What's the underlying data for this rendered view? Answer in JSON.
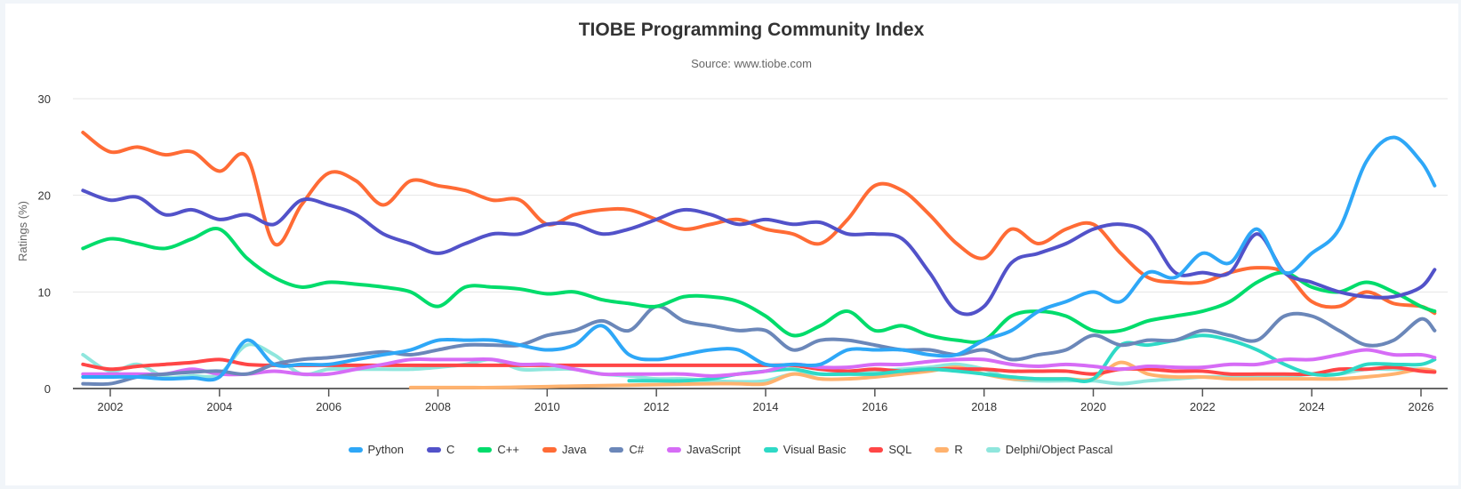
{
  "chart_data": {
    "type": "line",
    "title": "TIOBE Programming Community Index",
    "subtitle": "Source: www.tiobe.com",
    "xlabel": "",
    "ylabel": "Ratings (%)",
    "ylim": [
      0,
      30
    ],
    "yticks": [
      "0",
      "10",
      "20",
      "30"
    ],
    "xticks": [
      "2002",
      "2004",
      "2006",
      "2008",
      "2010",
      "2012",
      "2014",
      "2016",
      "2018",
      "2020",
      "2022",
      "2024",
      "2026"
    ],
    "grid": true,
    "legend_position": "bottom",
    "x": [
      "2001-07",
      "2002-01",
      "2002-07",
      "2003-01",
      "2003-07",
      "2004-01",
      "2004-07",
      "2005-01",
      "2005-07",
      "2006-01",
      "2006-07",
      "2007-01",
      "2007-07",
      "2008-01",
      "2008-07",
      "2009-01",
      "2009-07",
      "2010-01",
      "2010-07",
      "2011-01",
      "2011-07",
      "2012-01",
      "2012-07",
      "2013-01",
      "2013-07",
      "2014-01",
      "2014-07",
      "2015-01",
      "2015-07",
      "2016-01",
      "2016-07",
      "2017-01",
      "2017-07",
      "2018-01",
      "2018-07",
      "2019-01",
      "2019-07",
      "2020-01",
      "2020-07",
      "2021-01",
      "2021-07",
      "2022-01",
      "2022-07",
      "2023-01",
      "2023-07",
      "2024-01",
      "2024-07",
      "2025-01",
      "2025-07",
      "2026-01",
      "2026-04"
    ],
    "series": [
      {
        "name": "Python",
        "color": "#2ea7f7",
        "values": [
          1.2,
          1.2,
          1.2,
          1.0,
          1.1,
          1.2,
          5.0,
          2.5,
          2.5,
          2.5,
          3.0,
          3.5,
          4.0,
          5.0,
          5.0,
          5.0,
          4.5,
          4.0,
          4.5,
          6.5,
          3.5,
          3.0,
          3.5,
          4.0,
          4.0,
          2.5,
          2.5,
          2.5,
          4.0,
          4.0,
          4.0,
          3.5,
          3.5,
          5.0,
          6.0,
          8.0,
          9.0,
          10.0,
          9.0,
          12.0,
          11.5,
          14.0,
          13.0,
          16.5,
          12.0,
          14.0,
          16.5,
          23.5,
          26.0,
          23.5,
          21.0
        ]
      },
      {
        "name": "C",
        "color": "#5252c9",
        "values": [
          20.5,
          19.5,
          19.8,
          18.0,
          18.5,
          17.5,
          18.0,
          17.0,
          19.5,
          19.0,
          18.0,
          16.0,
          15.0,
          14.0,
          15.0,
          16.0,
          16.0,
          17.0,
          17.0,
          16.0,
          16.5,
          17.5,
          18.5,
          18.0,
          17.0,
          17.5,
          17.0,
          17.2,
          16.0,
          16.0,
          15.5,
          12.0,
          8.0,
          8.5,
          13.0,
          14.0,
          15.0,
          16.5,
          17.0,
          16.0,
          12.0,
          12.0,
          12.0,
          16.0,
          12.0,
          11.0,
          10.0,
          9.5,
          9.5,
          10.5,
          12.3
        ]
      },
      {
        "name": "C++",
        "color": "#00dc6b",
        "values": [
          14.5,
          15.5,
          15.0,
          14.5,
          15.5,
          16.5,
          13.5,
          11.5,
          10.5,
          11.0,
          10.8,
          10.5,
          10.0,
          8.5,
          10.5,
          10.5,
          10.3,
          9.8,
          10.0,
          9.2,
          8.8,
          8.5,
          9.5,
          9.5,
          9.0,
          7.5,
          5.5,
          6.5,
          8.0,
          6.0,
          6.5,
          5.5,
          5.0,
          5.0,
          7.5,
          8.0,
          7.5,
          6.0,
          6.0,
          7.0,
          7.5,
          8.0,
          9.0,
          11.0,
          12.0,
          10.5,
          10.0,
          11.0,
          10.0,
          8.5,
          8.0
        ]
      },
      {
        "name": "Java",
        "color": "#ff6b35",
        "values": [
          26.5,
          24.5,
          25.0,
          24.2,
          24.5,
          22.5,
          24.0,
          15.0,
          19.0,
          22.3,
          21.5,
          19.0,
          21.5,
          21.0,
          20.5,
          19.5,
          19.5,
          17.0,
          18.0,
          18.5,
          18.5,
          17.5,
          16.5,
          17.0,
          17.5,
          16.5,
          16.0,
          15.0,
          17.5,
          21.0,
          20.5,
          18.0,
          15.0,
          13.5,
          16.5,
          15.0,
          16.5,
          17.0,
          14.0,
          11.5,
          11.0,
          11.0,
          12.0,
          12.5,
          12.0,
          9.0,
          8.5,
          10.0,
          8.8,
          8.5,
          7.8
        ]
      },
      {
        "name": "C#",
        "color": "#6b87b9",
        "values": [
          0.5,
          0.5,
          1.2,
          1.5,
          1.7,
          1.8,
          1.5,
          2.5,
          3.0,
          3.2,
          3.5,
          3.8,
          3.5,
          4.0,
          4.5,
          4.5,
          4.5,
          5.5,
          6.0,
          7.0,
          6.0,
          8.5,
          7.0,
          6.5,
          6.0,
          6.0,
          4.0,
          5.0,
          5.0,
          4.5,
          4.0,
          4.0,
          3.5,
          4.0,
          3.0,
          3.5,
          4.0,
          5.5,
          4.5,
          5.0,
          5.0,
          6.0,
          5.5,
          5.0,
          7.5,
          7.5,
          6.0,
          4.5,
          5.0,
          7.2,
          6.0
        ]
      },
      {
        "name": "JavaScript",
        "color": "#d66cf6",
        "values": [
          1.5,
          1.5,
          1.5,
          1.5,
          2.0,
          1.5,
          1.5,
          1.8,
          1.5,
          1.5,
          2.0,
          2.5,
          3.0,
          3.0,
          3.0,
          3.0,
          2.5,
          2.5,
          2.0,
          1.5,
          1.5,
          1.5,
          1.5,
          1.3,
          1.5,
          1.8,
          2.5,
          2.2,
          2.2,
          2.5,
          2.5,
          2.8,
          3.0,
          3.0,
          2.5,
          2.3,
          2.5,
          2.3,
          2.0,
          2.3,
          2.2,
          2.2,
          2.5,
          2.5,
          3.0,
          3.0,
          3.5,
          4.0,
          3.5,
          3.5,
          3.2
        ]
      },
      {
        "name": "Visual Basic",
        "color": "#2ed9c6",
        "values": [
          null,
          null,
          null,
          null,
          null,
          null,
          null,
          null,
          null,
          null,
          null,
          null,
          null,
          null,
          null,
          null,
          null,
          null,
          null,
          null,
          0.8,
          0.8,
          0.8,
          1.0,
          1.5,
          1.8,
          2.0,
          1.5,
          1.5,
          1.5,
          1.8,
          2.0,
          1.8,
          1.5,
          1.2,
          1.0,
          1.0,
          1.0,
          4.5,
          4.5,
          5.0,
          5.5,
          5.0,
          4.0,
          2.5,
          1.5,
          1.5,
          2.5,
          2.5,
          2.5,
          3.0
        ]
      },
      {
        "name": "SQL",
        "color": "#ff4646",
        "values": [
          2.5,
          2.0,
          2.3,
          2.5,
          2.7,
          3.0,
          2.5,
          2.4,
          2.4,
          2.4,
          2.4,
          2.4,
          2.4,
          2.4,
          2.4,
          2.4,
          2.4,
          2.4,
          2.4,
          2.4,
          2.4,
          2.4,
          2.4,
          2.4,
          2.4,
          2.4,
          2.4,
          2.0,
          1.8,
          2.0,
          1.8,
          2.0,
          2.0,
          2.0,
          1.8,
          1.8,
          1.8,
          1.5,
          2.0,
          2.0,
          1.8,
          1.8,
          1.5,
          1.5,
          1.5,
          1.5,
          2.0,
          2.0,
          2.2,
          1.8,
          1.7
        ]
      },
      {
        "name": "R",
        "color": "#ffb26e",
        "values": [
          null,
          null,
          null,
          null,
          null,
          null,
          null,
          null,
          null,
          null,
          null,
          null,
          0.1,
          0.1,
          0.1,
          0.1,
          0.15,
          0.2,
          0.25,
          0.3,
          0.35,
          0.4,
          0.45,
          0.5,
          0.5,
          0.5,
          1.5,
          1.0,
          1.0,
          1.2,
          1.5,
          1.8,
          2.2,
          1.5,
          1.0,
          1.0,
          1.0,
          1.0,
          2.7,
          1.5,
          1.2,
          1.2,
          1.0,
          1.0,
          1.0,
          1.0,
          1.0,
          1.2,
          1.5,
          2.0,
          1.8
        ]
      },
      {
        "name": "Delphi/Object Pascal",
        "color": "#8fe6dd",
        "values": [
          3.5,
          1.8,
          2.5,
          1.2,
          1.3,
          1.5,
          4.5,
          3.5,
          1.5,
          2.0,
          2.0,
          2.0,
          2.0,
          2.2,
          2.5,
          3.0,
          2.0,
          2.0,
          2.0,
          1.5,
          1.3,
          1.0,
          1.0,
          0.8,
          0.7,
          0.8,
          1.5,
          1.5,
          1.5,
          1.8,
          2.0,
          2.2,
          2.5,
          2.0,
          1.0,
          0.8,
          0.8,
          0.8,
          0.5,
          0.8,
          1.0,
          1.2,
          1.2,
          1.2,
          1.2,
          1.5,
          1.5,
          2.0,
          2.0,
          2.0,
          1.8
        ]
      }
    ]
  }
}
